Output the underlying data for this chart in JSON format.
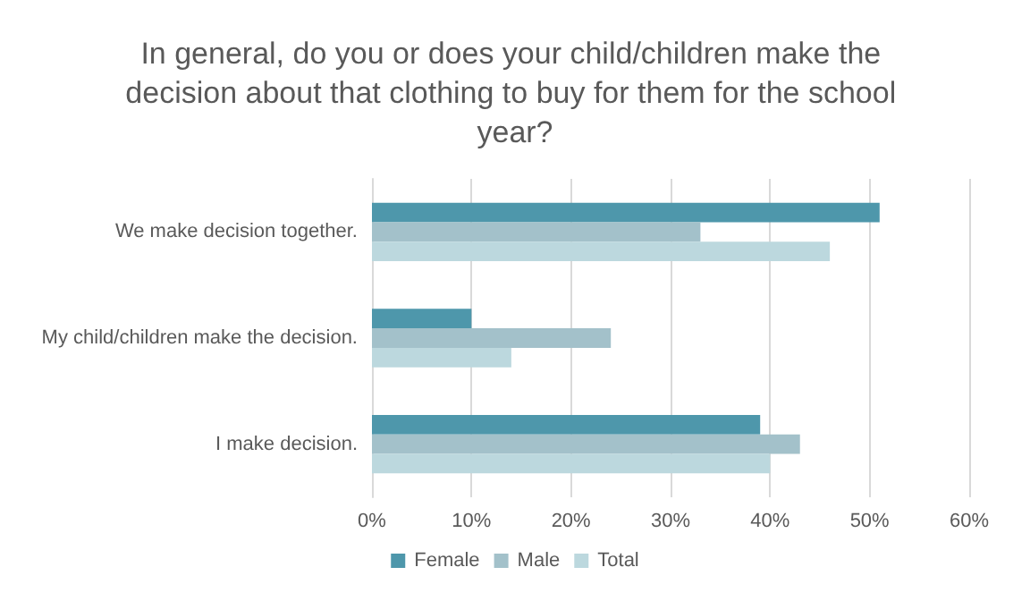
{
  "chart_data": {
    "type": "bar",
    "orientation": "horizontal",
    "title": "In general, do you or does your child/children make the decision about that clothing to buy for them for the school year?",
    "categories": [
      "We make decision together.",
      "My child/children make the decision.",
      "I make decision."
    ],
    "series": [
      {
        "name": "Female",
        "color": "#4e97ab",
        "values": [
          51,
          10,
          39
        ]
      },
      {
        "name": "Male",
        "color": "#a3c1ca",
        "values": [
          33,
          24,
          43
        ]
      },
      {
        "name": "Total",
        "color": "#bcd8de",
        "values": [
          46,
          14,
          40
        ]
      }
    ],
    "xlim": [
      0,
      60
    ],
    "xticks": [
      {
        "value": 0,
        "label": "0%"
      },
      {
        "value": 10,
        "label": "10%"
      },
      {
        "value": 20,
        "label": "20%"
      },
      {
        "value": 30,
        "label": "30%"
      },
      {
        "value": 40,
        "label": "40%"
      },
      {
        "value": 50,
        "label": "50%"
      },
      {
        "value": 60,
        "label": "60%"
      }
    ],
    "grid": "x",
    "legend": "bottom"
  }
}
